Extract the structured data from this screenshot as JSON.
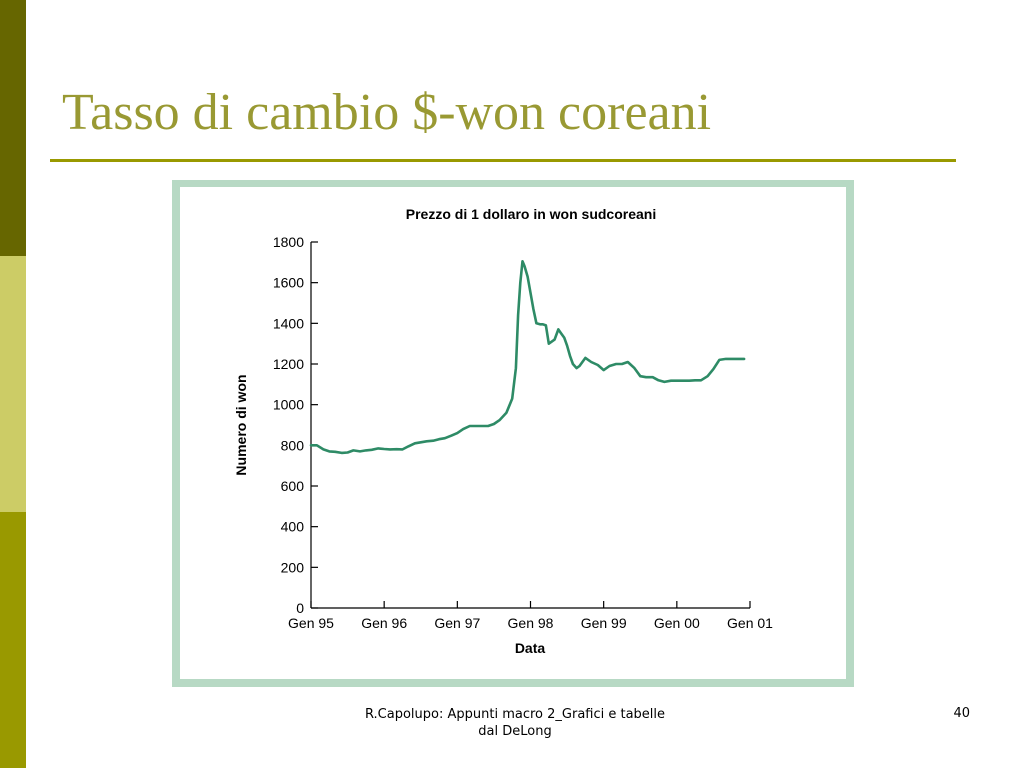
{
  "slide": {
    "title": "Tasso di cambio $-won coreani",
    "footer": "R.Capolupo: Appunti macro 2_Grafici e tabelle dal DeLong",
    "page_number": "40"
  },
  "colors": {
    "accent_dark": "#666600",
    "accent_light": "#cccc66",
    "accent_mid": "#999900",
    "title": "#999933",
    "frame": "#b7d9c4",
    "series": "#2e8b66"
  },
  "chart_data": {
    "type": "line",
    "title": "Prezzo di 1 dollaro in won sudcoreani",
    "xlabel": "Data",
    "ylabel": "Numero di won",
    "ylim": [
      0,
      1800
    ],
    "yticks": [
      0,
      200,
      400,
      600,
      800,
      1000,
      1200,
      1400,
      1600,
      1800
    ],
    "xlim": [
      1995.0,
      2001.0
    ],
    "xticks": [
      {
        "value": 1995,
        "label": "Gen 95"
      },
      {
        "value": 1996,
        "label": "Gen 96"
      },
      {
        "value": 1997,
        "label": "Gen 97"
      },
      {
        "value": 1998,
        "label": "Gen 98"
      },
      {
        "value": 1999,
        "label": "Gen 99"
      },
      {
        "value": 2000,
        "label": "Gen 00"
      },
      {
        "value": 2001,
        "label": "Gen 01"
      }
    ],
    "grid": false,
    "series": [
      {
        "x": [
          1995.0,
          1995.08,
          1995.17,
          1995.25,
          1995.33,
          1995.42,
          1995.5,
          1995.58,
          1995.67,
          1995.75,
          1995.83,
          1995.92,
          1996.0,
          1996.08,
          1996.17,
          1996.25,
          1996.33,
          1996.42,
          1996.5,
          1996.58,
          1996.67,
          1996.75,
          1996.83,
          1996.92,
          1997.0,
          1997.08,
          1997.17,
          1997.25,
          1997.33,
          1997.42,
          1997.5,
          1997.58,
          1997.67,
          1997.75,
          1997.8,
          1997.83,
          1997.86,
          1997.89,
          1997.92,
          1997.96,
          1998.0,
          1998.04,
          1998.08,
          1998.13,
          1998.17,
          1998.21,
          1998.25,
          1998.33,
          1998.38,
          1998.42,
          1998.46,
          1998.5,
          1998.54,
          1998.58,
          1998.63,
          1998.67,
          1998.71,
          1998.75,
          1998.83,
          1998.92,
          1999.0,
          1999.08,
          1999.17,
          1999.25,
          1999.33,
          1999.42,
          1999.5,
          1999.58,
          1999.67,
          1999.75,
          1999.83,
          1999.92,
          2000.0,
          2000.08,
          2000.17,
          2000.25,
          2000.33,
          2000.42,
          2000.5,
          2000.58,
          2000.67,
          2000.75,
          2000.83,
          2000.88,
          2000.92
        ],
        "y": [
          800,
          800,
          780,
          770,
          768,
          763,
          765,
          775,
          770,
          775,
          778,
          785,
          782,
          780,
          781,
          780,
          795,
          810,
          815,
          820,
          823,
          830,
          835,
          848,
          860,
          880,
          895,
          895,
          895,
          895,
          905,
          925,
          960,
          1030,
          1180,
          1440,
          1600,
          1705,
          1680,
          1630,
          1550,
          1470,
          1400,
          1395,
          1395,
          1390,
          1300,
          1320,
          1370,
          1350,
          1330,
          1290,
          1240,
          1200,
          1180,
          1190,
          1210,
          1230,
          1210,
          1195,
          1170,
          1190,
          1200,
          1200,
          1210,
          1180,
          1140,
          1135,
          1135,
          1120,
          1112,
          1118,
          1118,
          1118,
          1118,
          1120,
          1120,
          1140,
          1175,
          1220,
          1225,
          1225,
          1225,
          1225,
          1225
        ]
      }
    ]
  }
}
